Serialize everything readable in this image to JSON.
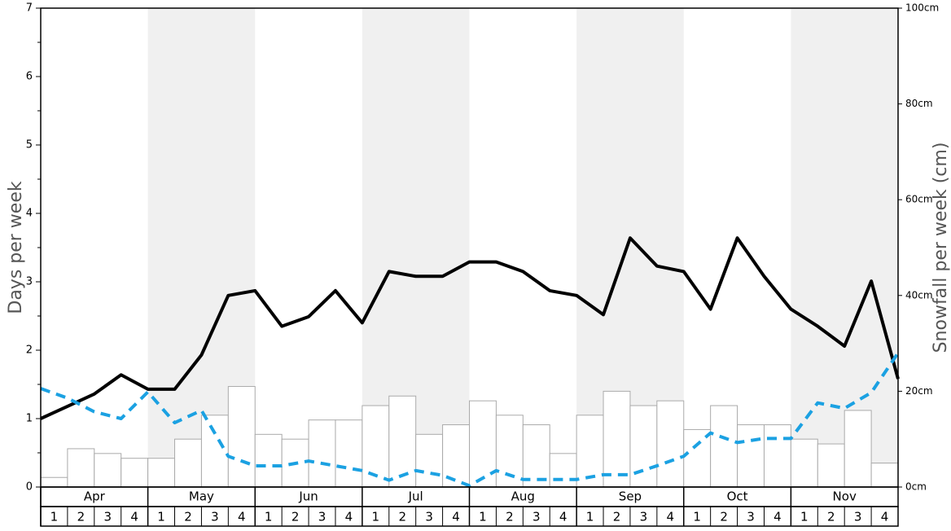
{
  "chart_data": {
    "type": "combo",
    "ylabel": "Days per week",
    "y2label": "Snowfall per week (cm)",
    "months": [
      "Apr",
      "May",
      "Jun",
      "Jul",
      "Aug",
      "Sep",
      "Oct",
      "Nov"
    ],
    "weeks": [
      "1",
      "2",
      "3",
      "4"
    ],
    "ylim": [
      0,
      7
    ],
    "yticks": [
      0,
      1,
      2,
      3,
      4,
      5,
      6,
      7
    ],
    "y2lim": [
      0,
      100
    ],
    "y2ticks": [
      {
        "value": 0,
        "label": "0cm"
      },
      {
        "value": 20,
        "label": "20cm"
      },
      {
        "value": 40,
        "label": "40cm"
      },
      {
        "value": 60,
        "label": "60cm"
      },
      {
        "value": 80,
        "label": "80cm"
      },
      {
        "value": 100,
        "label": "100cm"
      }
    ],
    "shade": "#f0f0f0",
    "series": [
      {
        "type": "bar",
        "axis": "y2",
        "color": "#ffffff",
        "edge": "#aaaaaa",
        "values": [
          2,
          8,
          7,
          6,
          6,
          10,
          15,
          21,
          11,
          10,
          14,
          14,
          17,
          19,
          11,
          13,
          18,
          15,
          13,
          7,
          15,
          20,
          17,
          18,
          12,
          17,
          13,
          13,
          10,
          9,
          16,
          5
        ]
      },
      {
        "type": "line",
        "color": "#000000",
        "values": [
          1.0,
          1.18,
          1.36,
          1.64,
          1.43,
          1.43,
          1.93,
          2.8,
          2.87,
          2.35,
          2.49,
          2.87,
          2.4,
          3.15,
          3.08,
          3.08,
          3.29,
          3.29,
          3.15,
          2.87,
          2.8,
          2.52,
          3.64,
          3.23,
          3.15,
          2.6,
          3.64,
          3.08,
          2.6,
          2.35,
          2.06,
          3.01,
          1.58
        ]
      },
      {
        "type": "line",
        "color": "#1ba1e2",
        "dashed": true,
        "values": [
          1.44,
          1.3,
          1.1,
          1.0,
          1.39,
          0.94,
          1.12,
          0.45,
          0.31,
          0.31,
          0.38,
          0.31,
          0.24,
          0.1,
          0.24,
          0.17,
          0.02,
          0.24,
          0.11,
          0.11,
          0.11,
          0.18,
          0.18,
          0.31,
          0.45,
          0.79,
          0.65,
          0.71,
          0.71,
          1.23,
          1.15,
          1.38,
          1.96
        ]
      }
    ]
  }
}
